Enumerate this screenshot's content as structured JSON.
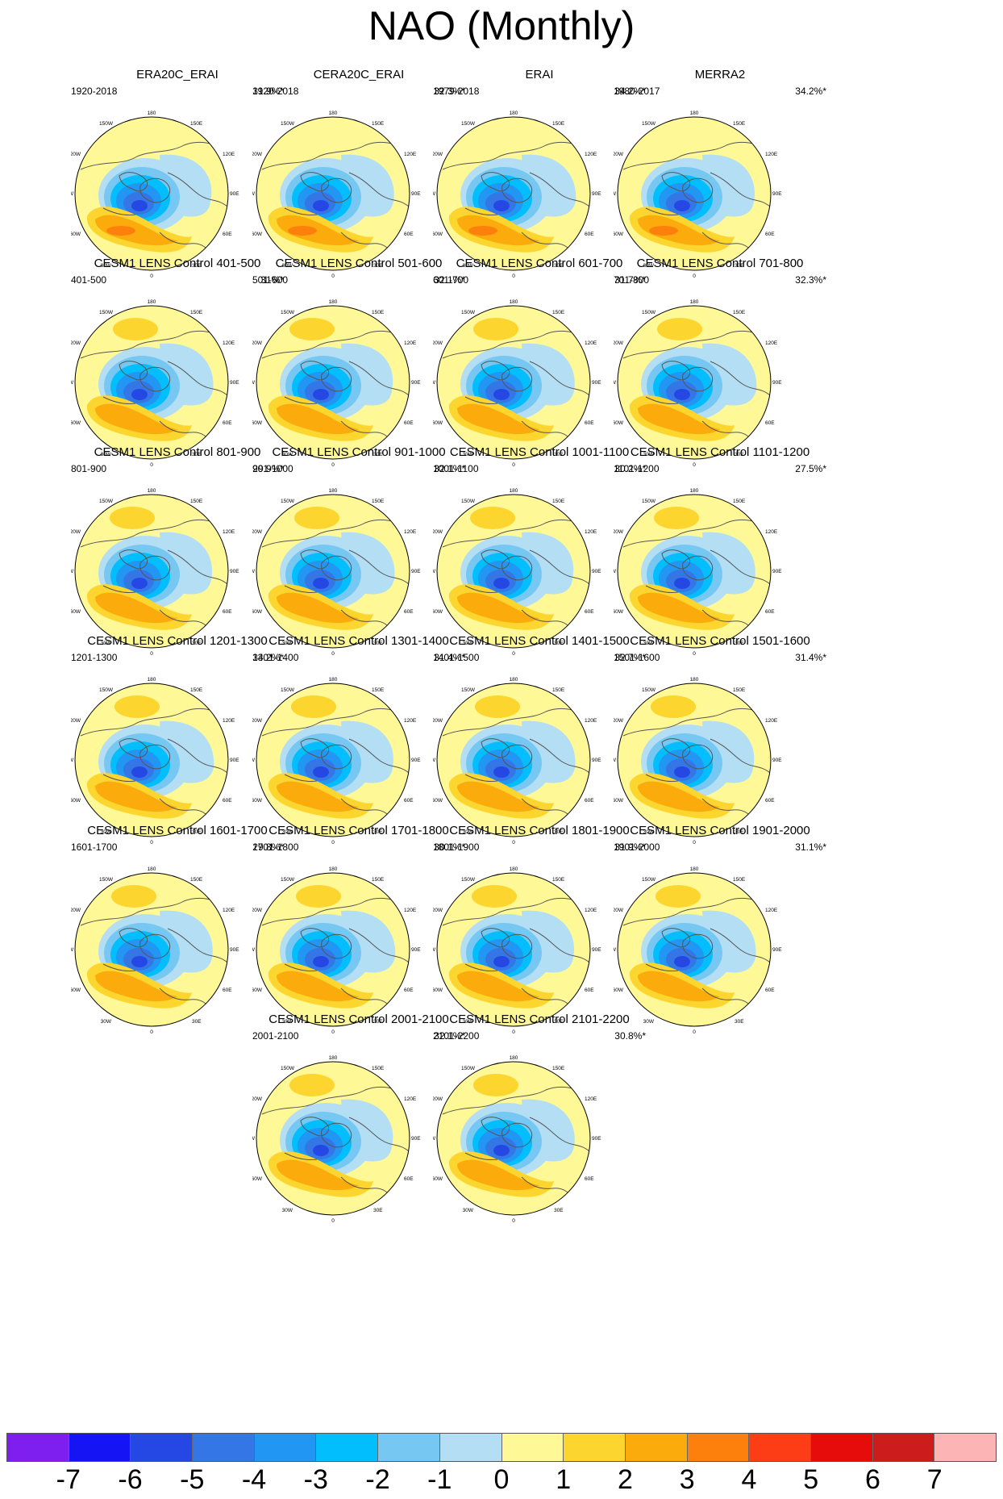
{
  "title": "NAO (Monthly)",
  "map_labels": {
    "top": "180",
    "top_left": "150W",
    "top_right": "150E",
    "upper_left": "120W",
    "upper_right": "120E",
    "left": "90W",
    "right": "90E",
    "lower_left": "60W",
    "lower_right": "60E",
    "bottom_left": "30W",
    "bottom_right": "30E",
    "bottom": "0"
  },
  "panels": [
    {
      "title": "ERA20C_ERAI",
      "period": "1920-2018",
      "percent": "31.9%*"
    },
    {
      "title": "CERA20C_ERAI",
      "period": "1920-2018",
      "percent": "32.3%*"
    },
    {
      "title": "ERAI",
      "period": "1979-2018",
      "percent": "34.2%*"
    },
    {
      "title": "MERRA2",
      "period": "1980-2017",
      "percent": "34.2%*"
    },
    {
      "title": "CESM1 LENS Control 401-500",
      "period": "401-500",
      "percent": "31%*"
    },
    {
      "title": "CESM1 LENS Control 501-600",
      "period": "501-600",
      "percent": "32.1%*"
    },
    {
      "title": "CESM1 LENS Control 601-700",
      "period": "601-700",
      "percent": "31.7%*"
    },
    {
      "title": "CESM1 LENS Control 701-800",
      "period": "701-800",
      "percent": "32.3%*"
    },
    {
      "title": "CESM1 LENS Control 801-900",
      "period": "801-900",
      "percent": "29.9%*"
    },
    {
      "title": "CESM1 LENS Control 901-1000",
      "period": "901-1000",
      "percent": "32.1%*"
    },
    {
      "title": "CESM1 LENS Control 1001-1100",
      "period": "1001-1100",
      "percent": "30.2%*"
    },
    {
      "title": "CESM1 LENS Control 1101-1200",
      "period": "1101-1200",
      "percent": "27.5%*"
    },
    {
      "title": "CESM1 LENS Control 1201-1300",
      "period": "1201-1300",
      "percent": "34.2%*"
    },
    {
      "title": "CESM1 LENS Control 1301-1400",
      "period": "1301-1400",
      "percent": "31.4%*"
    },
    {
      "title": "CESM1 LENS Control 1401-1500",
      "period": "1401-1500",
      "percent": "32.7%*"
    },
    {
      "title": "CESM1 LENS Control 1501-1600",
      "period": "1501-1600",
      "percent": "31.4%*"
    },
    {
      "title": "CESM1 LENS Control 1601-1700",
      "period": "1601-1700",
      "percent": "29.8%*"
    },
    {
      "title": "CESM1 LENS Control 1701-1800",
      "period": "1701-1800",
      "percent": "30.1%*"
    },
    {
      "title": "CESM1 LENS Control 1801-1900",
      "period": "1801-1900",
      "percent": "31.9%*"
    },
    {
      "title": "CESM1 LENS Control 1901-2000",
      "period": "1901-2000",
      "percent": "31.1%*"
    },
    {
      "title": "CESM1 LENS Control 2001-2100",
      "period": "2001-2100",
      "percent": "32.1%*"
    },
    {
      "title": "CESM1 LENS Control 2101-2200",
      "period": "2101-2200",
      "percent": "30.8%*"
    }
  ],
  "colorbar": {
    "colors": [
      "#7f1fef",
      "#1414f5",
      "#2548e4",
      "#3476e6",
      "#2196f3",
      "#03befc",
      "#76c8f2",
      "#b3def4",
      "#fff897",
      "#fdd52f",
      "#fbab0c",
      "#fd800d",
      "#fc3d16",
      "#e70c0c",
      "#cc1c1c",
      "#fdb4b4"
    ],
    "labels": [
      "-7",
      "-6",
      "-5",
      "-4",
      "-3",
      "-2",
      "-1",
      "0",
      "1",
      "2",
      "3",
      "4",
      "5",
      "6",
      "7"
    ]
  }
}
